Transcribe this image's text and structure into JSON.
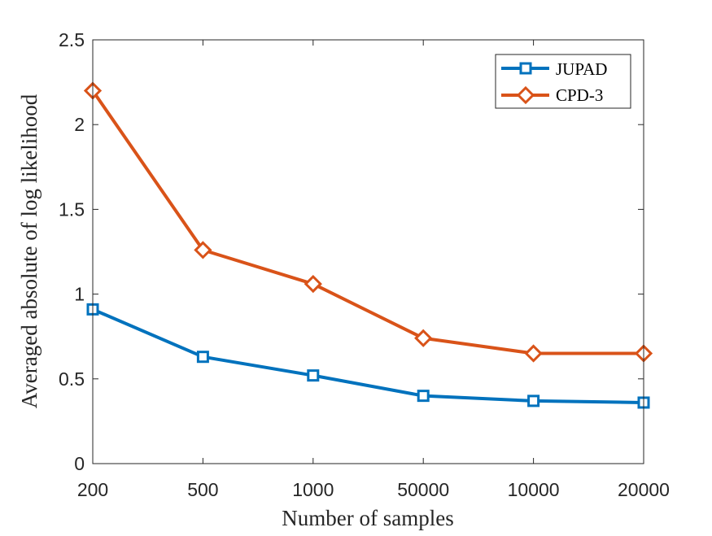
{
  "chart_data": {
    "type": "line",
    "title": "",
    "xlabel": "Number of samples",
    "ylabel": "Averaged absolute of log likelihood",
    "categories": [
      "200",
      "500",
      "1000",
      "50000",
      "10000",
      "20000"
    ],
    "ylim": [
      0,
      2.5
    ],
    "yticks": [
      "0",
      "0.5",
      "1",
      "1.5",
      "2",
      "2.5"
    ],
    "grid": false,
    "legend_position": "top-right",
    "series": [
      {
        "name": "JUPAD",
        "color": "#0072BD",
        "marker": "square",
        "values": [
          0.91,
          0.63,
          0.52,
          0.4,
          0.37,
          0.36
        ]
      },
      {
        "name": "CPD-3",
        "color": "#D95319",
        "marker": "diamond",
        "values": [
          2.2,
          1.26,
          1.06,
          0.74,
          0.65,
          0.65
        ]
      }
    ]
  }
}
